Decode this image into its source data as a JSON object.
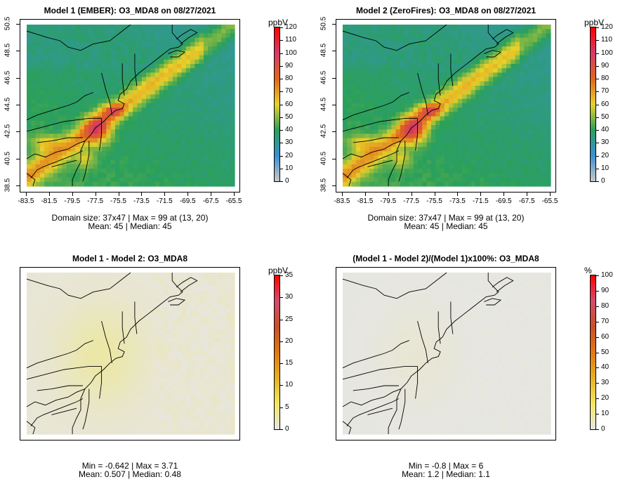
{
  "panels": [
    {
      "id": "p1",
      "title": "Model 1 (EMBER): O3_MDA8 on 08/27/2021",
      "unit": "ppbV",
      "field": "base",
      "caption1": "Domain size: 37x47 | Max = 99 at (13, 20)",
      "caption2": "Mean: 45 |  Median: 45",
      "show_axes": true,
      "colorbar": {
        "min": 0,
        "max": 120,
        "ticks": [
          "0",
          "10",
          "20",
          "30",
          "40",
          "50",
          "60",
          "70",
          "80",
          "90",
          "100",
          "110",
          "120"
        ]
      }
    },
    {
      "id": "p2",
      "title": "Model 2 (ZeroFires): O3_MDA8 on 08/27/2021",
      "unit": "ppbV",
      "field": "base",
      "caption1": "Domain size: 37x47 | Max = 99 at (13, 20)",
      "caption2": "Mean: 45 |  Median: 45",
      "show_axes": true,
      "colorbar": {
        "min": 0,
        "max": 120,
        "ticks": [
          "0",
          "10",
          "20",
          "30",
          "40",
          "50",
          "60",
          "70",
          "80",
          "90",
          "100",
          "110",
          "120"
        ]
      }
    },
    {
      "id": "p3",
      "title": "Model 1 - Model 2: O3_MDA8",
      "unit": "ppbV",
      "field": "diff",
      "caption1": "Min = -0.642 | Max = 3.71",
      "caption2": "Mean: 0.507 |  Median: 0.48",
      "show_axes": false,
      "colorbar": {
        "min": 0,
        "max": 35,
        "ticks": [
          "0",
          "5",
          "10",
          "15",
          "20",
          "25",
          "30",
          "35"
        ]
      }
    },
    {
      "id": "p4",
      "title": "(Model 1 - Model 2)/(Model 1)x100%: O3_MDA8",
      "unit": "%",
      "field": "pct",
      "caption1": "Min = -0.8 | Max = 6",
      "caption2": "Mean: 1.2 |  Median: 1.1",
      "show_axes": false,
      "colorbar": {
        "min": 0,
        "max": 100,
        "ticks": [
          "0",
          "10",
          "20",
          "30",
          "40",
          "50",
          "60",
          "70",
          "80",
          "90",
          "100"
        ]
      }
    }
  ],
  "axes": {
    "lon_ticks": [
      "-83.5",
      "-81.5",
      "-79.5",
      "-77.5",
      "-75.5",
      "-73.5",
      "-71.5",
      "-69.5",
      "-67.5",
      "-65.5"
    ],
    "lat_ticks": [
      "38.5",
      "40.5",
      "42.5",
      "44.5",
      "46.5",
      "48.5",
      "50.5"
    ]
  },
  "colors": {
    "base_scale": [
      "#c8c8c8",
      "#3a8fd4",
      "#2aa05a",
      "#e8d22a",
      "#e0661a",
      "#d43c6a",
      "#ff0000"
    ],
    "diff_scale": [
      "#e6e6e6",
      "#f2e860",
      "#e8b020",
      "#e07810",
      "#c85028",
      "#d44c6c",
      "#ff0000"
    ],
    "land_outline": "#000000"
  }
}
